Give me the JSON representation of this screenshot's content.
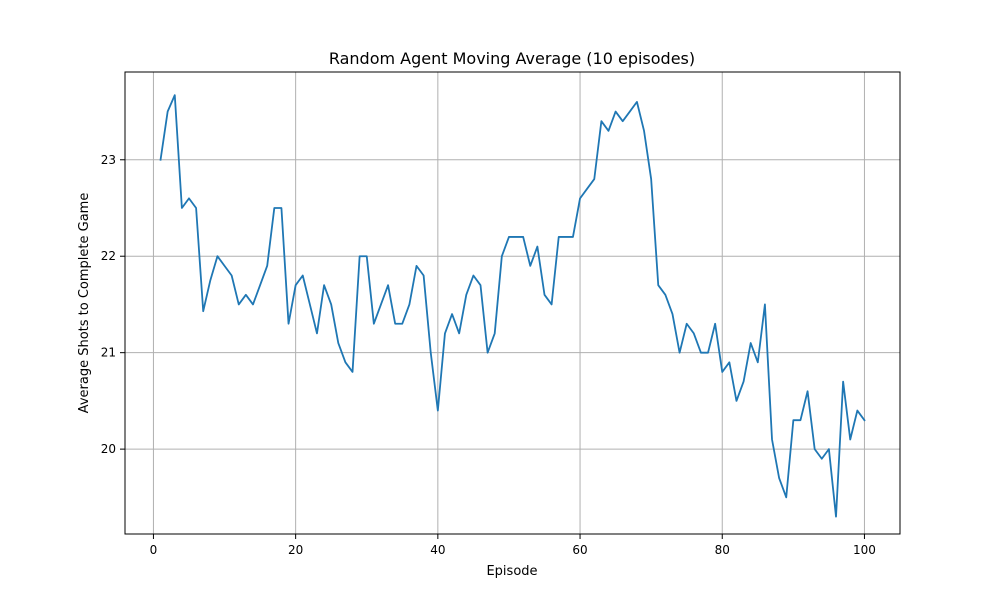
{
  "chart_data": {
    "type": "line",
    "title": "Random Agent Moving Average (10 episodes)",
    "xlabel": "Episode",
    "ylabel": "Average Shots to Complete Game",
    "xlim": [
      -4,
      105
    ],
    "ylim": [
      19.12,
      23.91
    ],
    "xticks": [
      0,
      20,
      40,
      60,
      80,
      100
    ],
    "yticks": [
      20,
      21,
      22,
      23
    ],
    "grid": true,
    "colors": {
      "series": "#1f77b4"
    },
    "series": [
      {
        "x": [
          1,
          2,
          3,
          4,
          5,
          6,
          7,
          8,
          9,
          10,
          11,
          12,
          13,
          14,
          15,
          16,
          17,
          18,
          19,
          20,
          21,
          22,
          23,
          24,
          25,
          26,
          27,
          28,
          29,
          30,
          31,
          32,
          33,
          34,
          35,
          36,
          37,
          38,
          39,
          40,
          41,
          42,
          43,
          44,
          45,
          46,
          47,
          48,
          49,
          50,
          51,
          52,
          53,
          54,
          55,
          56,
          57,
          58,
          59,
          60,
          61,
          62,
          63,
          64,
          65,
          66,
          67,
          68,
          69,
          70,
          71,
          72,
          73,
          74,
          75,
          76,
          77,
          78,
          79,
          80,
          81,
          82,
          83,
          84,
          85,
          86,
          87,
          88,
          89,
          90,
          91,
          92,
          93,
          94,
          95,
          96,
          97,
          98,
          99,
          100
        ],
        "values": [
          23.0,
          23.5,
          23.67,
          22.5,
          22.6,
          22.5,
          21.43,
          21.75,
          22.0,
          21.9,
          21.8,
          21.5,
          21.6,
          21.5,
          21.7,
          21.9,
          22.5,
          22.5,
          21.3,
          21.7,
          21.8,
          21.5,
          21.2,
          21.7,
          21.5,
          21.1,
          20.9,
          20.8,
          22.0,
          22.0,
          21.3,
          21.5,
          21.7,
          21.3,
          21.3,
          21.5,
          21.9,
          21.8,
          21.0,
          20.4,
          21.2,
          21.4,
          21.2,
          21.6,
          21.8,
          21.7,
          21.0,
          21.2,
          22.0,
          22.2,
          22.2,
          22.2,
          21.9,
          22.1,
          21.6,
          21.5,
          22.2,
          22.2,
          22.2,
          22.6,
          22.7,
          22.8,
          23.4,
          23.3,
          23.5,
          23.4,
          23.5,
          23.6,
          23.3,
          22.8,
          21.7,
          21.6,
          21.4,
          21.0,
          21.3,
          21.2,
          21.0,
          21.0,
          21.3,
          20.8,
          20.9,
          20.5,
          20.7,
          21.1,
          20.9,
          21.5,
          20.1,
          19.7,
          19.5,
          20.3,
          20.3,
          20.6,
          20.0,
          19.9,
          20.0,
          19.3,
          20.7,
          20.1,
          20.4,
          20.3
        ]
      }
    ]
  }
}
